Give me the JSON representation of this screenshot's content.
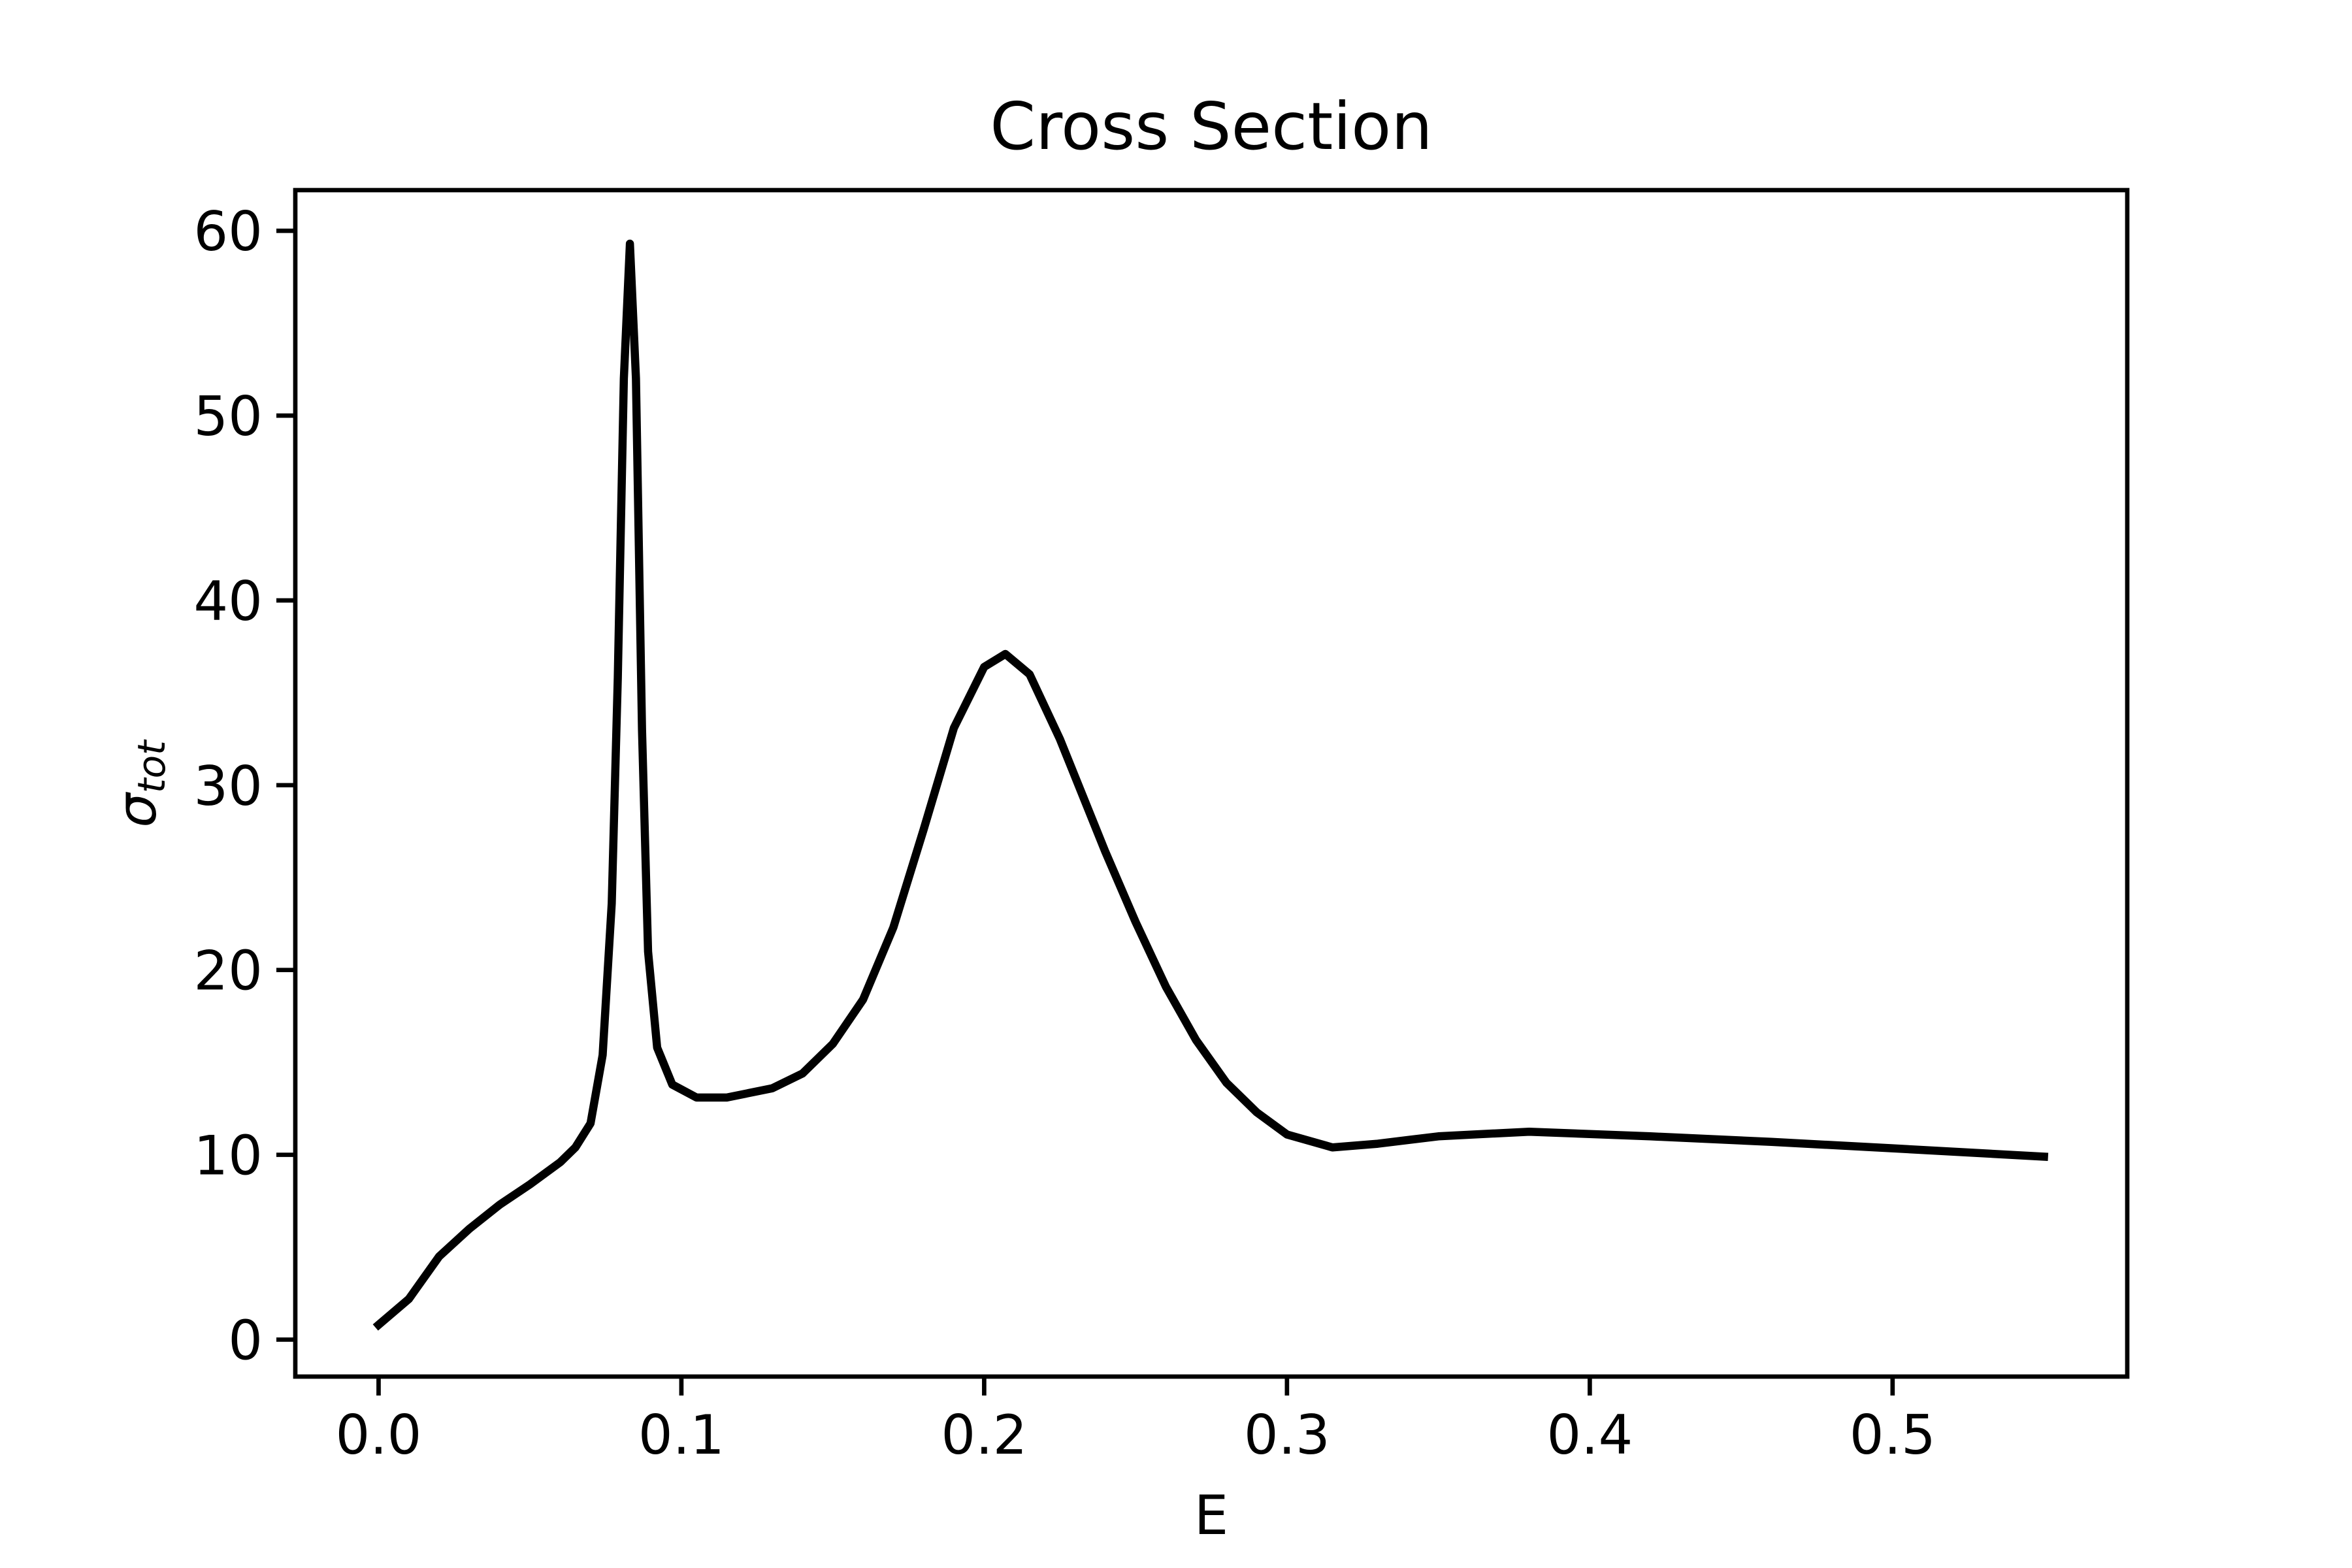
{
  "chart_data": {
    "type": "line",
    "title": "Cross Section",
    "xlabel": "E",
    "ylabel": {
      "base": "σ",
      "sub": "tot"
    },
    "color": "#000000",
    "x": [
      0,
      0.01,
      0.02,
      0.03,
      0.04,
      0.05,
      0.06,
      0.065,
      0.07,
      0.074,
      0.077,
      0.079,
      0.081,
      0.083,
      0.085,
      0.087,
      0.089,
      0.092,
      0.097,
      0.105,
      0.115,
      0.13,
      0.14,
      0.15,
      0.16,
      0.17,
      0.18,
      0.19,
      0.2,
      0.207,
      0.215,
      0.225,
      0.24,
      0.25,
      0.26,
      0.27,
      0.28,
      0.29,
      0.3,
      0.315,
      0.33,
      0.35,
      0.38,
      0.42,
      0.46,
      0.5,
      0.55
    ],
    "values": [
      0.8,
      2.2,
      4.5,
      6.0,
      7.3,
      8.4,
      9.6,
      10.4,
      11.7,
      15.4,
      23.6,
      35.8,
      52,
      59.3,
      52,
      33,
      21,
      15.8,
      13.8,
      13.1,
      13.1,
      13.6,
      14.4,
      16.0,
      18.4,
      22.3,
      27.6,
      33.1,
      36.4,
      37.1,
      36.0,
      32.5,
      26.4,
      22.6,
      19.1,
      16.2,
      13.9,
      12.3,
      11.1,
      10.4,
      10.6,
      11.0,
      11.25,
      11.0,
      10.7,
      10.35,
      9.9
    ],
    "xlim": [
      -0.0275,
      0.5775
    ],
    "ylim": [
      -2.0,
      62.2
    ],
    "xticks": [
      {
        "value": 0,
        "label": "0.0"
      },
      0.1,
      0.2,
      0.3,
      0.4,
      0.5
    ],
    "yticks": [
      0,
      10,
      20,
      30,
      40,
      50,
      60
    ]
  }
}
